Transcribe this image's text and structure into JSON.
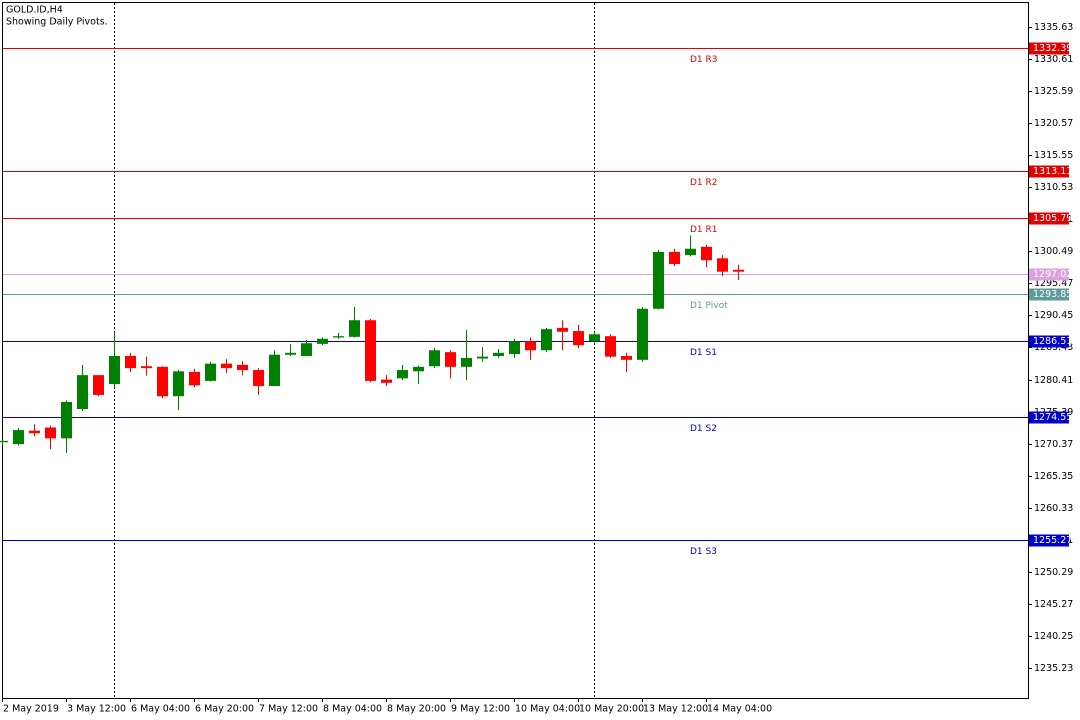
{
  "chart_data": {
    "type": "candlestick",
    "title": "GOLD.ID,H4",
    "subtitle": "Showing Daily Pivots.",
    "categories": [
      "2 May 2019",
      null,
      null,
      null,
      "3 May 12:00",
      null,
      null,
      null,
      "6 May 04:00",
      null,
      null,
      null,
      "6 May 20:00",
      null,
      null,
      null,
      "7 May 12:00",
      null,
      null,
      null,
      "8 May 04:00",
      null,
      null,
      null,
      "8 May 20:00",
      null,
      null,
      null,
      "9 May 12:00",
      null,
      null,
      null,
      "10 May 04:00",
      null,
      null,
      null,
      "10 May 20:00",
      null,
      null,
      null,
      "13 May 12:00",
      null,
      null,
      null,
      "14 May 04:00",
      null,
      null
    ],
    "open": [
      1270.6,
      1270.3,
      1272.4,
      1272.9,
      1271.2,
      1275.8,
      1281.1,
      1279.7,
      1284.1,
      1282.5,
      1282.4,
      1277.8,
      1281.6,
      1280.2,
      1282.9,
      1282.7,
      1281.9,
      1279.4,
      1284.3,
      1284.1,
      1286.0,
      1287.0,
      1287.1,
      1289.7,
      1280.4,
      1280.6,
      1281.7,
      1282.5,
      1284.7,
      1282.4,
      1283.7,
      1284.1,
      1284.4,
      1286.4,
      1285.0,
      1288.5,
      1288.0,
      1286.4,
      1287.2,
      1284.1,
      1283.5,
      1291.5,
      1300.4,
      1299.9,
      1301.2,
      1299.4,
      1297.6
    ],
    "high": [
      1271.0,
      1272.8,
      1273.4,
      1273.2,
      1277.1,
      1282.7,
      1281.1,
      1287.9,
      1284.6,
      1284.0,
      1282.5,
      1281.9,
      1282.1,
      1283.2,
      1283.6,
      1283.3,
      1282.2,
      1285.0,
      1286.0,
      1286.6,
      1287.0,
      1287.7,
      1291.8,
      1289.9,
      1281.1,
      1282.7,
      1282.6,
      1285.4,
      1285.0,
      1288.2,
      1285.5,
      1285.2,
      1286.8,
      1287.0,
      1288.5,
      1289.7,
      1289.0,
      1287.8,
      1287.5,
      1284.6,
      1291.8,
      1300.7,
      1300.9,
      1303.0,
      1301.5,
      1299.9,
      1298.4
    ],
    "low": [
      1270.2,
      1270.1,
      1271.5,
      1269.5,
      1268.9,
      1275.5,
      1277.8,
      1279.1,
      1281.6,
      1281.0,
      1277.5,
      1275.6,
      1279.2,
      1280.1,
      1281.4,
      1281.1,
      1278.0,
      1279.4,
      1284.1,
      1284.1,
      1285.8,
      1286.8,
      1287.0,
      1280.0,
      1279.4,
      1280.3,
      1279.7,
      1282.2,
      1280.6,
      1280.3,
      1283.2,
      1283.8,
      1283.8,
      1283.5,
      1284.7,
      1285.0,
      1285.3,
      1286.0,
      1283.8,
      1281.6,
      1283.2,
      1291.4,
      1298.2,
      1299.7,
      1298.0,
      1296.6,
      1296.0
    ],
    "close": [
      1270.8,
      1272.5,
      1272.0,
      1271.2,
      1276.9,
      1281.1,
      1278.0,
      1284.1,
      1282.2,
      1282.2,
      1277.8,
      1281.7,
      1279.5,
      1282.9,
      1282.2,
      1281.9,
      1279.4,
      1284.3,
      1284.6,
      1286.1,
      1286.8,
      1287.2,
      1289.7,
      1280.2,
      1279.9,
      1281.9,
      1282.4,
      1285.0,
      1282.4,
      1283.8,
      1284.0,
      1284.6,
      1286.4,
      1285.0,
      1288.3,
      1287.9,
      1285.8,
      1287.5,
      1284.0,
      1283.5,
      1291.5,
      1300.4,
      1298.5,
      1300.9,
      1299.1,
      1297.3,
      1297.3
    ],
    "up_color": "#008000",
    "down_color": "#ff0000",
    "levels": [
      {
        "name": "D1 R3",
        "value": 1332.39,
        "color": "#e00000"
      },
      {
        "name": "D1 R2",
        "value": 1313.11,
        "color": "#e00000"
      },
      {
        "name": "D1 R1",
        "value": 1305.79,
        "color": "#e00000"
      },
      {
        "name": "D1 Pivot",
        "value": 1293.85,
        "color": "#5f9a9a"
      },
      {
        "name": "D1 S1",
        "value": 1286.51,
        "color": "#0000c8"
      },
      {
        "name": "D1 S2",
        "value": 1274.55,
        "color": "#0000c8"
      },
      {
        "name": "D1 S3",
        "value": 1255.27,
        "color": "#0000c8"
      }
    ],
    "last_price": {
      "value": 1297.02,
      "color": "#dda0dd"
    },
    "ylim": [
      1230.53,
      1339.39
    ],
    "yticks": [
      1335.63,
      1330.61,
      1325.59,
      1320.57,
      1315.55,
      1310.53,
      1305.51,
      1300.49,
      1295.47,
      1290.45,
      1285.43,
      1280.41,
      1275.39,
      1270.37,
      1265.35,
      1260.33,
      1255.31,
      1250.29,
      1245.27,
      1240.25,
      1235.23
    ]
  }
}
